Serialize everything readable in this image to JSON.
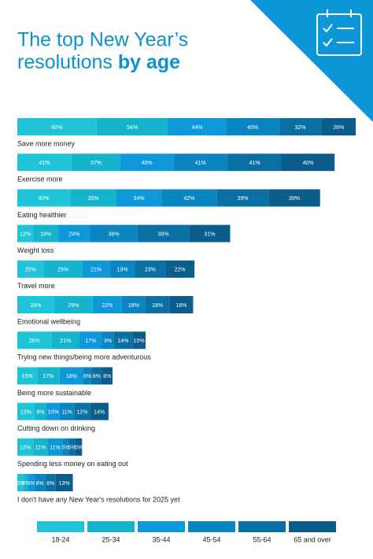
{
  "chart_data": {
    "type": "stacked-bar-horizontal",
    "title_lines": [
      "The top New Year’s",
      "resolutions",
      "by age"
    ],
    "categories": [
      "Save more money",
      "Exercise more",
      "Eating healthier",
      "Weight loss",
      "Travel more",
      "Emotional wellbeing",
      "Trying new things/being more adventurous",
      "Being more sustainable",
      "Cutting down on drinking",
      "Spending less money on eating out",
      "I don't have any New Year's resolutions for 2025 yet"
    ],
    "series": [
      {
        "name": "18-24",
        "color": "#20c4d8",
        "values": [
          60,
          41,
          40,
          12,
          20,
          28,
          26,
          15,
          13,
          12,
          5
        ],
        "value_labels": [
          "60%",
          "41%",
          "40%",
          "12%",
          "20%",
          "28%",
          "26%",
          "15%",
          "13%",
          "12%",
          "5%"
        ]
      },
      {
        "name": "25-34",
        "color": "#16b4cc",
        "values": [
          54,
          37,
          35,
          19,
          29,
          29,
          21,
          17,
          9,
          11,
          3
        ],
        "value_labels": [
          "54%",
          "37%",
          "35%",
          "19%",
          "29%",
          "29%",
          "21%",
          "17%",
          "9%",
          "11%",
          "3%"
        ]
      },
      {
        "name": "35-44",
        "color": "#0e97d9",
        "values": [
          44,
          40,
          34,
          24,
          21,
          22,
          17,
          18,
          10,
          11,
          5
        ],
        "value_labels": [
          "44%",
          "40%",
          "34%",
          "24%",
          "21%",
          "22%",
          "17%",
          "18%",
          "10%",
          "11%",
          "5%"
        ]
      },
      {
        "name": "45-54",
        "color": "#0b85c2",
        "values": [
          40,
          41,
          42,
          36,
          19,
          18,
          9,
          6,
          11,
          5,
          8
        ],
        "value_labels": [
          "40%",
          "41%",
          "42%",
          "36%",
          "19%",
          "18%",
          "9%",
          "6%",
          "11%",
          "5%",
          "8%"
        ]
      },
      {
        "name": "55-64",
        "color": "#0a70a4",
        "values": [
          32,
          41,
          39,
          39,
          23,
          18,
          14,
          8,
          12,
          5,
          8
        ],
        "value_labels": [
          "32%",
          "41%",
          "39%",
          "39%",
          "23%",
          "18%",
          "14%",
          "8%",
          "12%",
          "5%",
          "8%"
        ]
      },
      {
        "name": "65 and over",
        "color": "#0b5e8b",
        "values": [
          26,
          40,
          39,
          31,
          22,
          18,
          10,
          8,
          14,
          5,
          13
        ],
        "value_labels": [
          "26%",
          "40%",
          "39%",
          "31%",
          "22%",
          "18%",
          "10%",
          "8%",
          "14%",
          "5%",
          "13%"
        ]
      }
    ]
  }
}
